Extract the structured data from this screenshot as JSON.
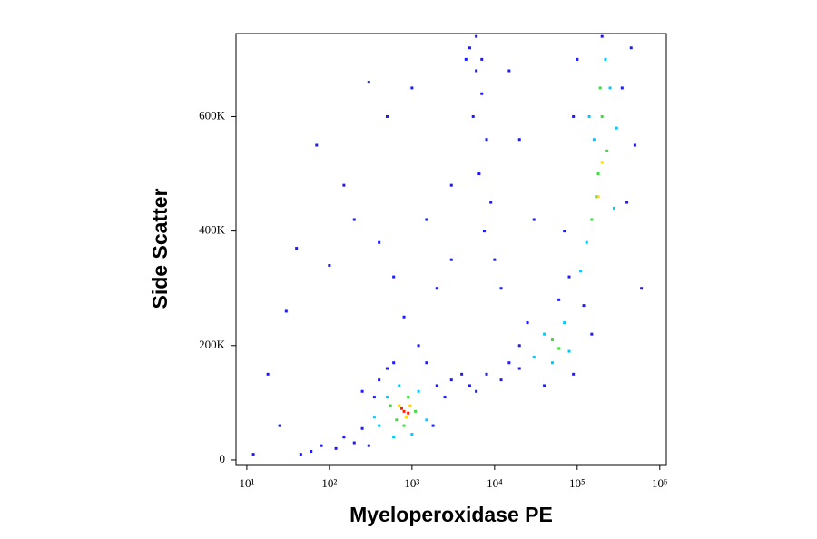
{
  "chart_data": {
    "type": "scatter",
    "xlabel": "Myeloperoxidase PE",
    "ylabel": "Side Scatter",
    "xscale": "log",
    "xlim": [
      7.4,
      1200000
    ],
    "xticks": [
      {
        "value": 10,
        "label": "10¹"
      },
      {
        "value": 100,
        "label": "10²"
      },
      {
        "value": 1000,
        "label": "10³"
      },
      {
        "value": 10000,
        "label": "10⁴"
      },
      {
        "value": 100000,
        "label": "10⁵"
      },
      {
        "value": 1000000,
        "label": "10⁶"
      }
    ],
    "ylim": [
      -8000,
      745000
    ],
    "yticks": [
      0,
      {
        "value": 200000,
        "label": "200K"
      },
      {
        "value": 400000,
        "label": "400K"
      },
      {
        "value": 600000,
        "label": "600K"
      }
    ],
    "series": [
      {
        "color": "#1a1aff",
        "x": [
          150,
          200,
          250,
          300,
          120,
          400,
          350,
          500,
          1800,
          2000,
          1500,
          250,
          80,
          60,
          45,
          2500,
          600,
          3000,
          5000,
          8000,
          12000,
          6000,
          20000,
          4000,
          20000,
          15000,
          150000,
          120000,
          25000,
          60000,
          40000,
          90000,
          80000,
          70000,
          400000,
          500000,
          350000,
          100000,
          90000,
          600000,
          450000,
          200000,
          5000,
          6000,
          7000,
          5500,
          8000,
          4500,
          6500,
          9000,
          7500,
          10000,
          12000,
          6000,
          7000,
          30,
          40,
          70,
          150,
          300,
          500,
          1000,
          200,
          400,
          2000,
          800,
          3000,
          20000,
          30000,
          15000,
          100,
          600,
          1500,
          3000,
          1200,
          25,
          12,
          18
        ],
        "values": [
          40000,
          30000,
          55000,
          25000,
          20000,
          140000,
          110000,
          160000,
          60000,
          130000,
          170000,
          120000,
          25000,
          15000,
          10000,
          110000,
          170000,
          140000,
          130000,
          150000,
          140000,
          120000,
          160000,
          150000,
          200000,
          170000,
          220000,
          270000,
          240000,
          280000,
          130000,
          150000,
          320000,
          400000,
          450000,
          550000,
          650000,
          700000,
          600000,
          300000,
          720000,
          740000,
          720000,
          680000,
          640000,
          600000,
          560000,
          700000,
          500000,
          450000,
          400000,
          350000,
          300000,
          740000,
          700000,
          260000,
          370000,
          550000,
          480000,
          660000,
          600000,
          650000,
          420000,
          380000,
          300000,
          250000,
          480000,
          560000,
          420000,
          680000,
          340000,
          320000,
          420000,
          350000,
          200000,
          60000,
          10000,
          150000
        ]
      },
      {
        "color": "#00c8ff",
        "x": [
          400,
          500,
          700,
          1200,
          1500,
          350,
          600,
          1000,
          30000,
          40000,
          70000,
          80000,
          50000,
          110000,
          130000,
          160000,
          250000,
          220000,
          280000,
          140000,
          300000
        ],
        "values": [
          60000,
          110000,
          130000,
          120000,
          70000,
          75000,
          40000,
          45000,
          180000,
          220000,
          240000,
          190000,
          170000,
          330000,
          380000,
          560000,
          650000,
          700000,
          440000,
          600000,
          580000
        ]
      },
      {
        "color": "#3cdc3c",
        "x": [
          550,
          900,
          650,
          1100,
          800,
          50000,
          60000,
          150000,
          180000,
          200000,
          170000,
          230000,
          190000
        ],
        "values": [
          95000,
          110000,
          70000,
          85000,
          60000,
          210000,
          195000,
          420000,
          500000,
          600000,
          460000,
          540000,
          650000
        ]
      },
      {
        "color": "#ffd200",
        "x": [
          700,
          850,
          950,
          180000,
          200000
        ],
        "values": [
          95000,
          75000,
          95000,
          460000,
          520000
        ]
      },
      {
        "color": "#ff2000",
        "x": [
          800,
          750,
          900
        ],
        "values": [
          85000,
          90000,
          82000
        ]
      }
    ]
  }
}
